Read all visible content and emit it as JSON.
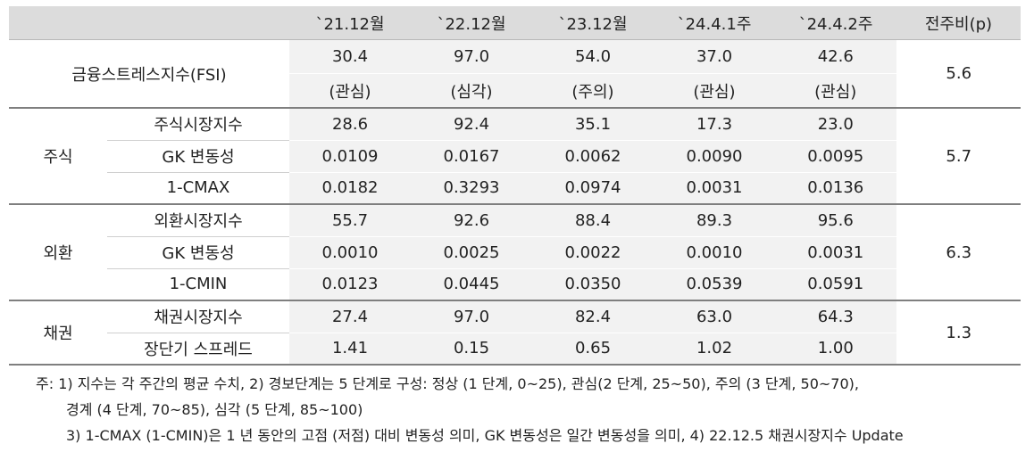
{
  "header": {
    "blank": "",
    "cols": [
      "`21.12월",
      "`22.12월",
      "`23.12월",
      "`24.4.1주",
      "`24.4.2주"
    ],
    "change": "전주비(p)"
  },
  "fsi": {
    "label": "금융스트레스지수(FSI)",
    "values": [
      "30.4",
      "97.0",
      "54.0",
      "37.0",
      "42.6"
    ],
    "levels": [
      "(관심)",
      "(심각)",
      "(주의)",
      "(관심)",
      "(관심)"
    ],
    "change": "5.6"
  },
  "groups": [
    {
      "label": "주식",
      "change": "5.7",
      "rows": [
        {
          "name": "주식시장지수",
          "values": [
            "28.6",
            "92.4",
            "35.1",
            "17.3",
            "23.0"
          ]
        },
        {
          "name": "GK 변동성",
          "values": [
            "0.0109",
            "0.0167",
            "0.0062",
            "0.0090",
            "0.0095"
          ]
        },
        {
          "name": "1-CMAX",
          "values": [
            "0.0182",
            "0.3293",
            "0.0974",
            "0.0031",
            "0.0136"
          ]
        }
      ]
    },
    {
      "label": "외환",
      "change": "6.3",
      "rows": [
        {
          "name": "외환시장지수",
          "values": [
            "55.7",
            "92.6",
            "88.4",
            "89.3",
            "95.6"
          ]
        },
        {
          "name": "GK 변동성",
          "values": [
            "0.0010",
            "0.0025",
            "0.0022",
            "0.0010",
            "0.0031"
          ]
        },
        {
          "name": "1-CMIN",
          "values": [
            "0.0123",
            "0.0445",
            "0.0350",
            "0.0539",
            "0.0591"
          ]
        }
      ]
    },
    {
      "label": "채권",
      "change": "1.3",
      "rows": [
        {
          "name": "채권시장지수",
          "values": [
            "27.4",
            "97.0",
            "82.4",
            "63.0",
            "64.3"
          ]
        },
        {
          "name": "장단기 스프레드",
          "values": [
            "1.41",
            "0.15",
            "0.65",
            "1.02",
            "1.00"
          ]
        }
      ]
    }
  ],
  "notes": [
    "주: 1) 지수는 각 주간의 평균 수치, 2) 경보단계는 5 단계로 구성: 정상 (1 단계, 0~25), 관심(2 단계, 25~50), 주의 (3 단계, 50~70),",
    "경계 (4 단계, 70~85), 심각 (5 단계, 85~100)",
    "3) 1-CMAX (1-CMIN)은 1 년 동안의 고점 (저점) 대비 변동성 의미, GK 변동성은 일간 변동성을 의미, 4) 22.12.5 채권시장지수 Update"
  ]
}
